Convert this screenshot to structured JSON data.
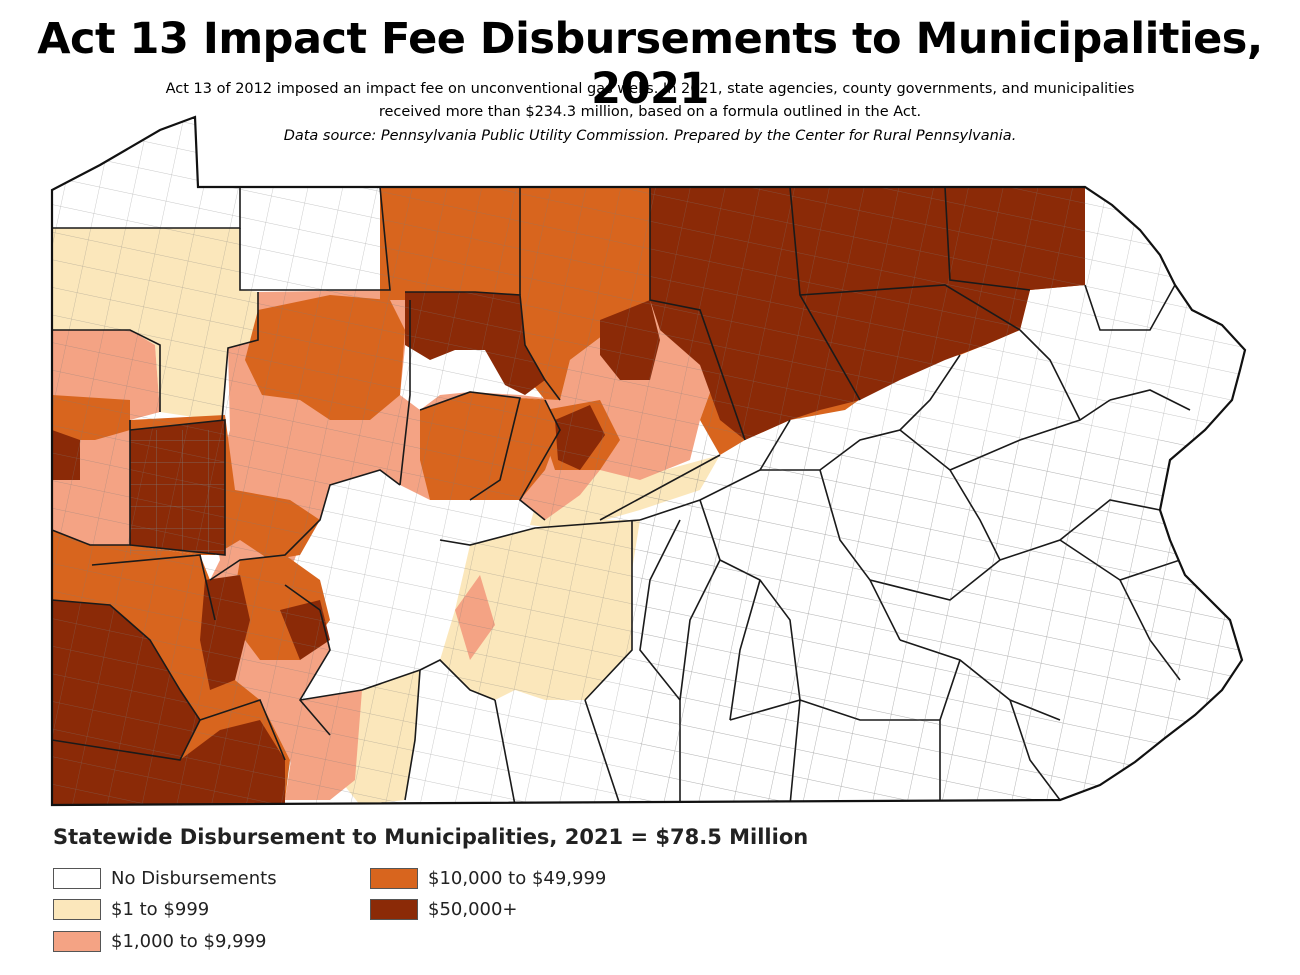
{
  "title": "Act 13 Impact Fee Disbursements to Municipalities, 2021",
  "subtitle_line1": "Act 13 of 2012 imposed an impact fee on unconventional gas wells. In 2021, state agencies, county governments, and municipalities",
  "subtitle_line2": "received more than $234.3 million, based on a formula outlined in the Act.",
  "source": "Data source: Pennsylvania Public Utility Commission. Prepared by the Center for Rural Pennsylvania.",
  "legend": {
    "title": "Statewide Disbursement to Municipalities, 2021 = $78.5 Million",
    "items": [
      {
        "label": "No Disbursements",
        "color": "#ffffff"
      },
      {
        "label": "$1 to $999",
        "color": "#fbe7bb"
      },
      {
        "label": "$1,000 to $9,999",
        "color": "#f4a384"
      },
      {
        "label": "$10,000 to $49,999",
        "color": "#d8651e"
      },
      {
        "label": "$50,000+",
        "color": "#8b2a07"
      }
    ]
  }
}
